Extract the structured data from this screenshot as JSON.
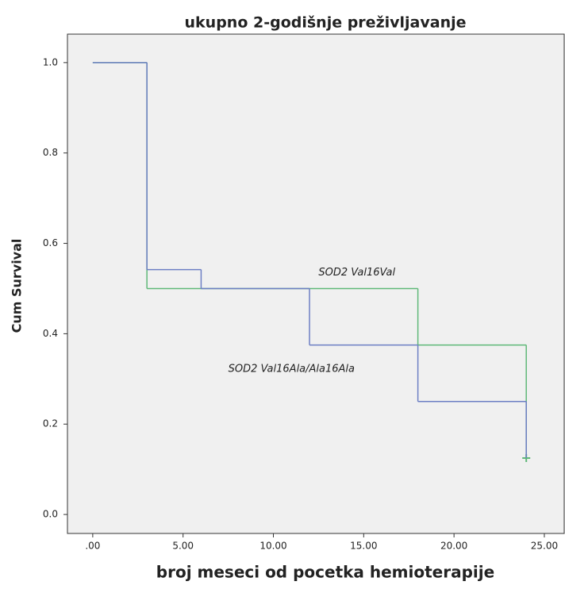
{
  "chart_data": {
    "type": "step",
    "title": "ukupno 2-godišnje preživljavanje",
    "x_label": "broj meseci od pocetka hemioterapije",
    "y_label": "Cum Survival",
    "xlim": [
      -1.4,
      26.1
    ],
    "ylim": [
      -0.042,
      1.063
    ],
    "xticks": [
      {
        "value": 0,
        "label": ".00"
      },
      {
        "value": 5,
        "label": "5.00"
      },
      {
        "value": 10,
        "label": "10.00"
      },
      {
        "value": 15,
        "label": "15.00"
      },
      {
        "value": 20,
        "label": "20.00"
      },
      {
        "value": 25,
        "label": "25.00"
      }
    ],
    "yticks": [
      {
        "value": 0,
        "label": "0.0"
      },
      {
        "value": 0.2,
        "label": "0.2"
      },
      {
        "value": 0.4,
        "label": "0.4"
      },
      {
        "value": 0.6,
        "label": "0.6"
      },
      {
        "value": 0.8,
        "label": "0.8"
      },
      {
        "value": 1,
        "label": "1.0"
      }
    ],
    "series": [
      {
        "name": "SOD2 Val16Val",
        "color": "#5fb878",
        "x": [
          0,
          3,
          18,
          24
        ],
        "values": [
          1,
          0.5,
          0.375,
          0.125
        ],
        "censored_x": [
          24
        ],
        "censored_y": [
          0.125
        ],
        "label_x": 12.5,
        "label_y": 0.535
      },
      {
        "name": "SOD2 Val16Ala/Ala16Ala",
        "color": "#6d7fc4",
        "x": [
          0,
          3,
          6,
          12,
          18,
          24
        ],
        "values": [
          1,
          0.542,
          0.5,
          0.375,
          0.25,
          0.125
        ],
        "censored_x": [],
        "censored_y": [],
        "label_x": 7.5,
        "label_y": 0.322
      }
    ]
  }
}
